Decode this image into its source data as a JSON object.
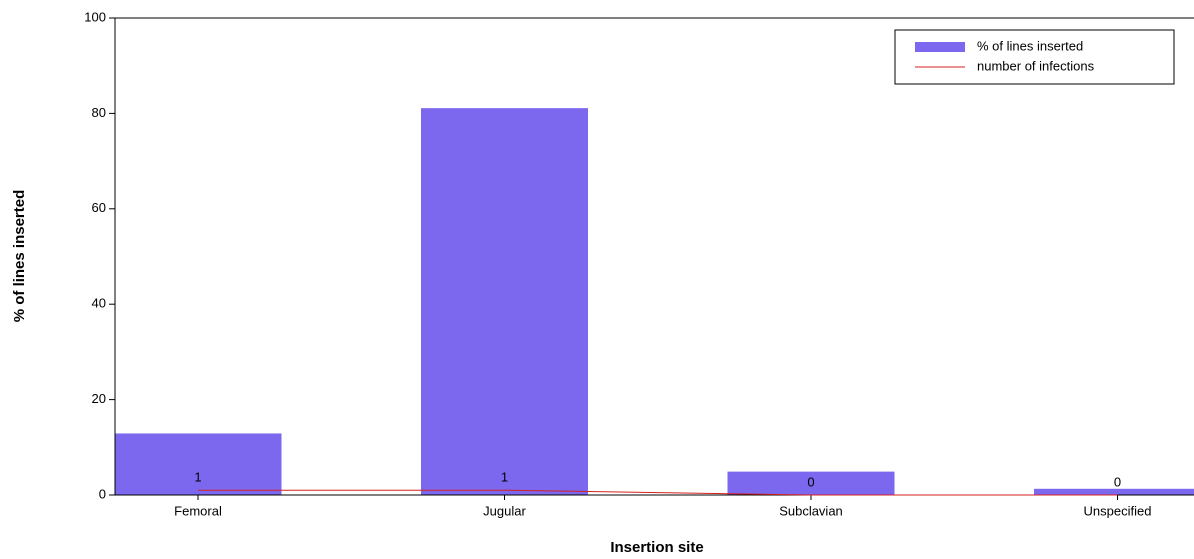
{
  "chart_data": {
    "type": "bar",
    "categories": [
      "Femoral",
      "Jugular",
      "Subclavian",
      "Unspecified"
    ],
    "series": [
      {
        "name": "% of lines inserted",
        "type": "bar",
        "color": "#7b68ee",
        "values": [
          12.9,
          81.1,
          4.9,
          1.3
        ]
      },
      {
        "name": "number of infections",
        "type": "line",
        "color": "#d62020",
        "values": [
          1,
          1,
          0,
          0
        ]
      }
    ],
    "ylim": [
      0,
      100
    ],
    "yticks": [
      0,
      20,
      40,
      60,
      80,
      100
    ],
    "ylabel": "% of lines inserted",
    "xlabel": "Insertion site",
    "legend": "top-right"
  }
}
